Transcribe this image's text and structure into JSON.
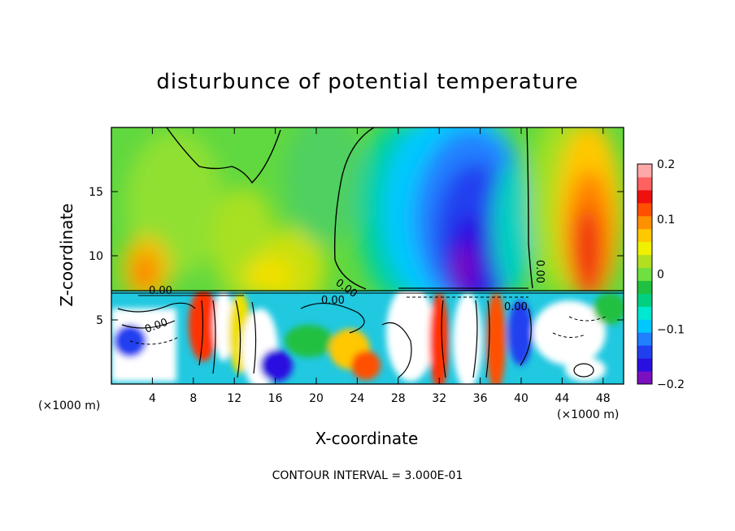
{
  "chart_data": {
    "type": "heatmap",
    "title": "disturbunce of potential temperature",
    "xlabel": "X-coordinate",
    "ylabel": "Z-coordinate",
    "x_unit_left": "(×1000 m)",
    "x_unit_right": "(×1000 m)",
    "xlim": [
      0,
      50
    ],
    "ylim": [
      0,
      20
    ],
    "xticks": [
      "4",
      "8",
      "12",
      "16",
      "20",
      "24",
      "28",
      "32",
      "36",
      "40",
      "44",
      "48"
    ],
    "yticks": [
      "5",
      "10",
      "15"
    ],
    "colorbar": {
      "min": -0.2,
      "max": 0.2,
      "tick_labels": [
        "0.2",
        "0.1",
        "0",
        "−0.1",
        "−0.2"
      ],
      "colors": [
        "#7a10c0",
        "#2a10e0",
        "#2040f0",
        "#2080ff",
        "#00c8ff",
        "#00e8d0",
        "#00d080",
        "#20c040",
        "#70e040",
        "#b0e020",
        "#f0f000",
        "#ffc800",
        "#ff9000",
        "#ff5000",
        "#f01010",
        "#ff6060",
        "#ffa8a8"
      ]
    },
    "contour_labels": [
      "0.00",
      "0.00",
      "0.00",
      "0.00",
      "0.00",
      "0.00"
    ],
    "footer": "CONTOUR INTERVAL = 3.000E-01"
  }
}
